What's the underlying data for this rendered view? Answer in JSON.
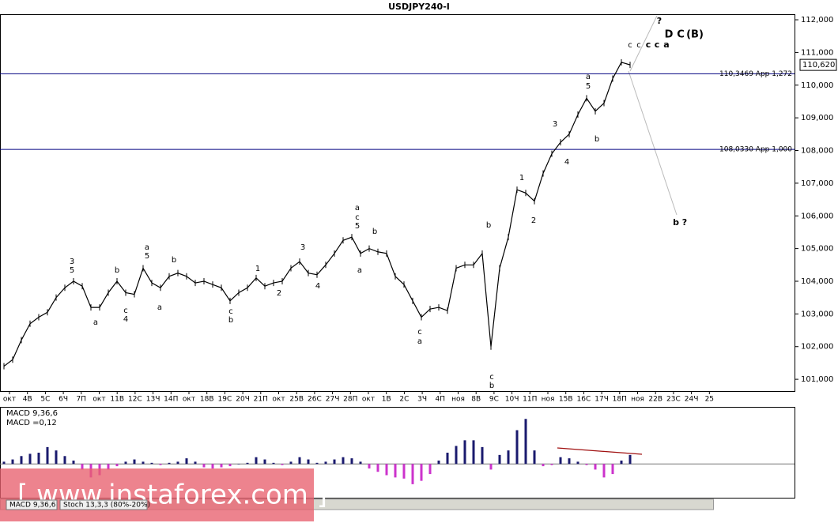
{
  "watermark": "[ www.instaforex.com ]",
  "tabs": [
    "MACD 9,36,6",
    "Stoch 13,3,3 (80%-20%)"
  ],
  "chart_data": [
    {
      "type": "line",
      "title": "USDJPY240-I",
      "time_labels": [
        "окт",
        "4В",
        "5С",
        "6Ч",
        "7П",
        "окт",
        "11В",
        "12С",
        "13Ч",
        "14П",
        "окт",
        "18В",
        "19С",
        "20Ч",
        "21П",
        "окт",
        "25В",
        "26С",
        "27Ч",
        "28П",
        "окт",
        "1В",
        "2С",
        "3Ч",
        "4П",
        "ноя",
        "8В",
        "9С",
        "10Ч",
        "11П",
        "ноя",
        "15В",
        "16С",
        "17Ч",
        "18П",
        "ноя",
        "22В",
        "23С",
        "24Ч",
        "25"
      ],
      "series": [
        {
          "color": "#000000",
          "values": [
            101.4,
            101.6,
            102.2,
            102.7,
            102.9,
            103.05,
            103.5,
            103.8,
            104.0,
            103.85,
            103.2,
            103.2,
            103.65,
            104.0,
            103.65,
            103.6,
            104.4,
            103.95,
            103.8,
            104.15,
            104.25,
            104.15,
            103.95,
            104.0,
            103.9,
            103.8,
            103.4,
            103.65,
            103.8,
            104.1,
            103.85,
            103.95,
            104.0,
            104.4,
            104.6,
            104.25,
            104.2,
            104.5,
            104.85,
            105.25,
            105.35,
            104.85,
            105.0,
            104.9,
            104.85,
            104.15,
            103.9,
            103.4,
            102.9,
            103.15,
            103.2,
            103.1,
            104.4,
            104.5,
            104.5,
            104.85,
            102.0,
            104.4,
            105.35,
            106.8,
            106.7,
            106.45,
            107.3,
            107.9,
            108.25,
            108.5,
            109.1,
            109.6,
            109.2,
            109.45,
            110.2,
            110.7,
            110.62
          ]
        }
      ],
      "ylim": [
        100.64,
        112.17
      ],
      "yticks": [
        {
          "value": 112,
          "label": "112,000"
        },
        {
          "value": 111,
          "label": "111,000"
        },
        {
          "value": 110,
          "label": "110,000"
        },
        {
          "value": 109,
          "label": "109,000"
        },
        {
          "value": 108,
          "label": "108,000"
        },
        {
          "value": 107,
          "label": "107,000"
        },
        {
          "value": 106,
          "label": "106,000"
        },
        {
          "value": 105,
          "label": "105,000"
        },
        {
          "value": 104,
          "label": "104,000"
        },
        {
          "value": 103,
          "label": "103,000"
        },
        {
          "value": 102,
          "label": "102,000"
        },
        {
          "value": 101,
          "label": "101,000"
        }
      ],
      "current": {
        "value": 110.62,
        "label": "110,620"
      },
      "levels": [
        {
          "value": 110.3469,
          "label": "110,3469 App 1,272",
          "color": "#000080"
        },
        {
          "value": 108.033,
          "label": "108,0330 App 1,000",
          "color": "#000080"
        }
      ],
      "annotations": [
        {
          "text": "3",
          "color": "#000"
        },
        {
          "text": "5",
          "color": "#000"
        },
        {
          "text": "a",
          "color": "#000"
        },
        {
          "text": "b",
          "color": "#000"
        },
        {
          "text": "c",
          "color": "#000"
        },
        {
          "text": "4",
          "color": "#b00000"
        },
        {
          "text": "a",
          "color": "#000"
        },
        {
          "text": "5",
          "color": "#000"
        },
        {
          "text": "b",
          "color": "#000"
        },
        {
          "text": "a",
          "color": "#000"
        },
        {
          "text": "1",
          "color": "#000"
        },
        {
          "text": "2",
          "color": "#000"
        },
        {
          "text": "4",
          "color": "#000"
        },
        {
          "text": "3",
          "color": "#000"
        },
        {
          "text": "c",
          "color": "#000"
        },
        {
          "text": "b",
          "color": "#000"
        },
        {
          "text": "a",
          "color": "#000"
        },
        {
          "text": "c",
          "color": "#000"
        },
        {
          "text": "5",
          "color": "#000"
        },
        {
          "text": "b",
          "color": "#000"
        },
        {
          "text": "a",
          "color": "#000"
        },
        {
          "text": "c",
          "color": "#000"
        },
        {
          "text": "a",
          "color": "#000"
        },
        {
          "text": "b",
          "color": "#000"
        },
        {
          "text": "c",
          "color": "#000"
        },
        {
          "text": "b",
          "color": "#000"
        },
        {
          "text": "1",
          "color": "#000"
        },
        {
          "text": "2",
          "color": "#000"
        },
        {
          "text": "3",
          "color": "#000"
        },
        {
          "text": "4",
          "color": "#000"
        },
        {
          "text": "a",
          "color": "#000"
        },
        {
          "text": "5",
          "color": "#000"
        },
        {
          "text": "b",
          "color": "#8b0000"
        },
        {
          "text": "c",
          "color": "#000"
        },
        {
          "text": "c",
          "color": "#000"
        },
        {
          "text": "c",
          "color": "#000"
        },
        {
          "text": "c",
          "color": "#1a1a4a"
        },
        {
          "text": "a",
          "color": "#1a9ab0"
        },
        {
          "text": "D",
          "color": "#1a9ab0"
        },
        {
          "text": "C",
          "color": "#c00000"
        },
        {
          "text": "(B)",
          "color": "#c00000"
        },
        {
          "text": "?",
          "color": "#c00000"
        },
        {
          "text": "b",
          "color": "#1a9ab0"
        },
        {
          "text": "?",
          "color": "#1a1a4a"
        }
      ]
    },
    {
      "type": "bar",
      "title": "MACD 9,36,6",
      "current": 0.12,
      "current_label": "MACD =0,12",
      "colors": [
        "#1a1a6e",
        "#cc33cc"
      ],
      "ylim": [
        -0.3,
        0.5
      ],
      "values": [
        0.02,
        0.04,
        0.07,
        0.09,
        0.1,
        0.15,
        0.12,
        0.07,
        0.03,
        -0.05,
        -0.12,
        -0.1,
        -0.05,
        -0.02,
        0.02,
        0.04,
        0.02,
        0.01,
        -0.01,
        0.01,
        0.02,
        0.05,
        0.02,
        -0.03,
        -0.04,
        -0.03,
        -0.02,
        0,
        0.01,
        0.06,
        0.04,
        0.01,
        -0.01,
        0.02,
        0.06,
        0.04,
        0.01,
        0.02,
        0.04,
        0.06,
        0.05,
        0.02,
        -0.04,
        -0.07,
        -0.1,
        -0.12,
        -0.13,
        -0.18,
        -0.15,
        -0.09,
        0.03,
        0.1,
        0.16,
        0.21,
        0.21,
        0.15,
        -0.05,
        0.08,
        0.12,
        0.3,
        0.4,
        0.12,
        -0.02,
        -0.01,
        0.06,
        0.05,
        0.02,
        -0.01,
        -0.05,
        -0.12,
        -0.09,
        0.03,
        0.08
      ]
    }
  ]
}
